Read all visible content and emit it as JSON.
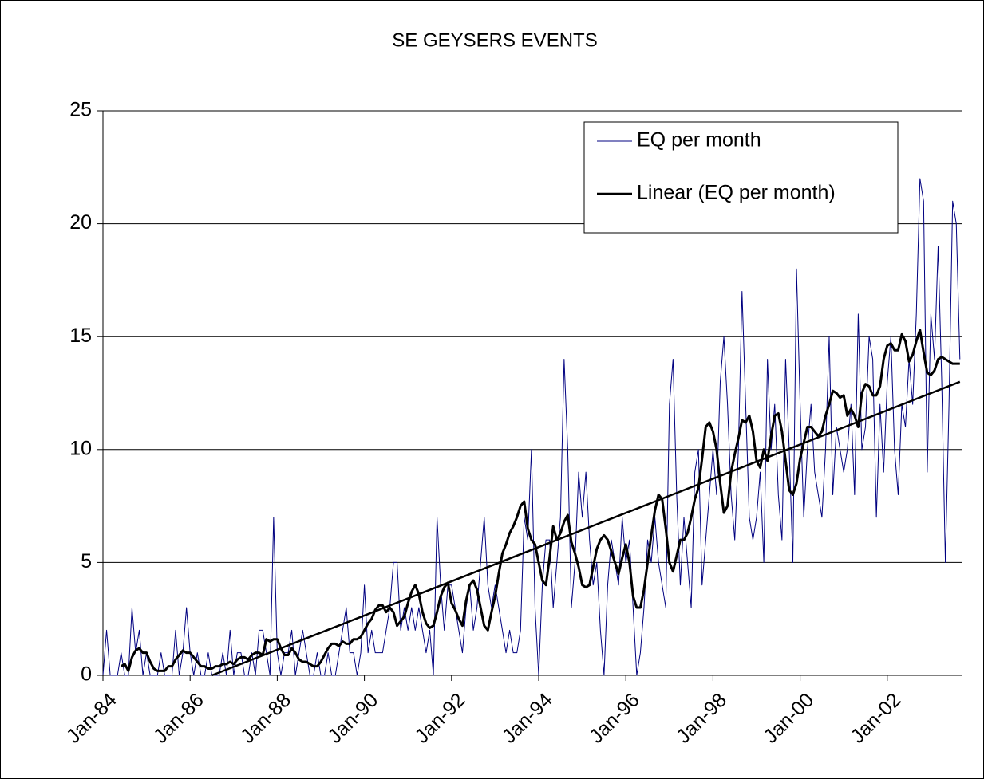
{
  "chart_data": {
    "type": "line",
    "title": "SE GEYSERS EVENTS",
    "x": [
      "Jan-84",
      "Feb-84",
      "Mar-84",
      "Apr-84",
      "May-84",
      "Jun-84",
      "Jul-84",
      "Aug-84",
      "Sep-84",
      "Oct-84",
      "Nov-84",
      "Dec-84",
      "Jan-85",
      "Feb-85",
      "Mar-85",
      "Apr-85",
      "May-85",
      "Jun-85",
      "Jul-85",
      "Aug-85",
      "Sep-85",
      "Oct-85",
      "Nov-85",
      "Dec-85",
      "Jan-86",
      "Feb-86",
      "Mar-86",
      "Apr-86",
      "May-86",
      "Jun-86",
      "Jul-86",
      "Aug-86",
      "Sep-86",
      "Oct-86",
      "Nov-86",
      "Dec-86",
      "Jan-87",
      "Feb-87",
      "Mar-87",
      "Apr-87",
      "May-87",
      "Jun-87",
      "Jul-87",
      "Aug-87",
      "Sep-87",
      "Oct-87",
      "Nov-87",
      "Dec-87",
      "Jan-88",
      "Feb-88",
      "Mar-88",
      "Apr-88",
      "May-88",
      "Jun-88",
      "Jul-88",
      "Aug-88",
      "Sep-88",
      "Oct-88",
      "Nov-88",
      "Dec-88",
      "Jan-89",
      "Feb-89",
      "Mar-89",
      "Apr-89",
      "May-89",
      "Jun-89",
      "Jul-89",
      "Aug-89",
      "Sep-89",
      "Oct-89",
      "Nov-89",
      "Dec-89",
      "Jan-90",
      "Feb-90",
      "Mar-90",
      "Apr-90",
      "May-90",
      "Jun-90",
      "Jul-90",
      "Aug-90",
      "Sep-90",
      "Oct-90",
      "Nov-90",
      "Dec-90",
      "Jan-91",
      "Feb-91",
      "Mar-91",
      "Apr-91",
      "May-91",
      "Jun-91",
      "Jul-91",
      "Aug-91",
      "Sep-91",
      "Oct-91",
      "Nov-91",
      "Dec-91",
      "Jan-92",
      "Feb-92",
      "Mar-92",
      "Apr-92",
      "May-92",
      "Jun-92",
      "Jul-92",
      "Aug-92",
      "Sep-92",
      "Oct-92",
      "Nov-92",
      "Dec-92",
      "Jan-93",
      "Feb-93",
      "Mar-93",
      "Apr-93",
      "May-93",
      "Jun-93",
      "Jul-93",
      "Aug-93",
      "Sep-93",
      "Oct-93",
      "Nov-93",
      "Dec-93",
      "Jan-94",
      "Feb-94",
      "Mar-94",
      "Apr-94",
      "May-94",
      "Jun-94",
      "Jul-94",
      "Aug-94",
      "Sep-94",
      "Oct-94",
      "Nov-94",
      "Dec-94",
      "Jan-95",
      "Feb-95",
      "Mar-95",
      "Apr-95",
      "May-95",
      "Jun-95",
      "Jul-95",
      "Aug-95",
      "Sep-95",
      "Oct-95",
      "Nov-95",
      "Dec-95",
      "Jan-96",
      "Feb-96",
      "Mar-96",
      "Apr-96",
      "May-96",
      "Jun-96",
      "Jul-96",
      "Aug-96",
      "Sep-96",
      "Oct-96",
      "Nov-96",
      "Dec-96",
      "Jan-97",
      "Feb-97",
      "Mar-97",
      "Apr-97",
      "May-97",
      "Jun-97",
      "Jul-97",
      "Aug-97",
      "Sep-97",
      "Oct-97",
      "Nov-97",
      "Dec-97",
      "Jan-98",
      "Feb-98",
      "Mar-98",
      "Apr-98",
      "May-98",
      "Jun-98",
      "Jul-98",
      "Aug-98",
      "Sep-98",
      "Oct-98",
      "Nov-98",
      "Dec-98",
      "Jan-99",
      "Feb-99",
      "Mar-99",
      "Apr-99",
      "May-99",
      "Jun-99",
      "Jul-99",
      "Aug-99",
      "Sep-99",
      "Oct-99",
      "Nov-99",
      "Dec-99",
      "Jan-00",
      "Feb-00",
      "Mar-00",
      "Apr-00",
      "May-00",
      "Jun-00",
      "Jul-00",
      "Aug-00",
      "Sep-00",
      "Oct-00",
      "Nov-00",
      "Dec-00",
      "Jan-01",
      "Feb-01",
      "Mar-01",
      "Apr-01",
      "May-01",
      "Jun-01",
      "Jul-01",
      "Aug-01",
      "Sep-01",
      "Oct-01",
      "Nov-01",
      "Dec-01",
      "Jan-02",
      "Feb-02",
      "Mar-02",
      "Apr-02",
      "May-02",
      "Jun-02",
      "Jul-02",
      "Aug-02",
      "Sep-02",
      "Oct-02",
      "Nov-02",
      "Dec-02",
      "Jan-03",
      "Feb-03",
      "Mar-03",
      "Apr-03",
      "May-03",
      "Jun-03",
      "Jul-03",
      "Aug-03",
      "Sep-03"
    ],
    "series": [
      {
        "name": "EQ per month",
        "color": "#000080",
        "width": 1,
        "values": [
          0,
          2,
          0,
          0,
          0,
          1,
          0,
          0,
          3,
          1,
          2,
          0,
          1,
          0,
          0,
          0,
          1,
          0,
          0,
          0,
          2,
          0,
          1,
          3,
          1,
          0,
          1,
          0,
          0,
          1,
          0,
          0,
          0,
          1,
          0,
          2,
          0,
          1,
          1,
          0,
          0,
          1,
          0,
          2,
          2,
          1,
          0,
          7,
          1,
          0,
          1,
          1,
          2,
          0,
          1,
          2,
          1,
          0,
          0,
          1,
          0,
          0,
          1,
          0,
          0,
          1,
          2,
          3,
          1,
          1,
          0,
          1,
          4,
          1,
          2,
          1,
          1,
          1,
          2,
          3,
          5,
          5,
          2,
          3,
          2,
          3,
          2,
          3,
          2,
          1,
          2,
          0,
          7,
          4,
          2,
          4,
          4,
          3,
          2,
          1,
          3,
          4,
          2,
          3,
          5,
          7,
          4,
          3,
          4,
          3,
          2,
          1,
          2,
          1,
          1,
          2,
          7,
          6,
          10,
          3,
          0,
          4,
          6,
          6,
          3,
          5,
          7,
          14,
          10,
          3,
          5,
          9,
          7,
          9,
          6,
          4,
          5,
          2,
          0,
          4,
          6,
          5,
          4,
          7,
          5,
          6,
          3,
          0,
          1,
          3,
          6,
          5,
          7,
          5,
          4,
          3,
          12,
          14,
          8,
          4,
          7,
          5,
          3,
          9,
          10,
          4,
          6,
          8,
          10,
          8,
          13,
          15,
          12,
          8,
          6,
          10,
          17,
          12,
          7,
          6,
          7,
          9,
          5,
          14,
          10,
          12,
          8,
          6,
          14,
          10,
          5,
          18,
          12,
          7,
          10,
          12,
          9,
          8,
          7,
          10,
          15,
          8,
          11,
          10,
          9,
          10,
          12,
          8,
          16,
          10,
          11,
          15,
          14,
          7,
          12,
          9,
          13,
          15,
          10,
          8,
          12,
          11,
          14,
          12,
          16,
          22,
          21,
          9,
          16,
          14,
          19,
          13,
          5,
          12,
          21,
          20,
          14
        ]
      },
      {
        "color": "#000000",
        "width": 3,
        "values": [
          null,
          null,
          null,
          null,
          null,
          0.4,
          0.5,
          0.2,
          0.8,
          1.1,
          1.2,
          1.0,
          1,
          0.6,
          0.3,
          0.2,
          0.2,
          0.2,
          0.4,
          0.4,
          0.7,
          0.9,
          1.1,
          1.0,
          1.0,
          0.8,
          0.6,
          0.4,
          0.4,
          0.3,
          0.3,
          0.4,
          0.4,
          0.5,
          0.5,
          0.6,
          0.5,
          0.7,
          0.8,
          0.8,
          0.7,
          0.9,
          1.0,
          1.0,
          0.9,
          1.6,
          1.5,
          1.6,
          1.6,
          1.2,
          0.9,
          0.9,
          1.2,
          1.0,
          0.7,
          0.6,
          0.6,
          0.5,
          0.4,
          0.4,
          0.6,
          0.9,
          1.2,
          1.4,
          1.4,
          1.3,
          1.5,
          1.4,
          1.4,
          1.6,
          1.6,
          1.7,
          2.0,
          2.3,
          2.5,
          2.9,
          3.1,
          3.1,
          2.8,
          3.0,
          2.8,
          2.2,
          2.4,
          2.6,
          3.2,
          3.7,
          4.0,
          3.6,
          2.8,
          2.3,
          2.1,
          2.2,
          2.8,
          3.5,
          3.9,
          4.1,
          3.2,
          2.9,
          2.5,
          2.2,
          3.3,
          4.0,
          4.2,
          3.8,
          3.0,
          2.2,
          2.0,
          2.8,
          3.5,
          4.5,
          5.4,
          5.8,
          6.3,
          6.6,
          7.0,
          7.5,
          7.7,
          6.5,
          6.0,
          5.8,
          5.0,
          4.2,
          4.0,
          5.2,
          6.6,
          6.0,
          6.3,
          6.8,
          7.1,
          5.9,
          5.4,
          4.8,
          4.0,
          3.9,
          4.0,
          4.8,
          5.6,
          6.0,
          6.2,
          6.0,
          5.5,
          5.0,
          4.5,
          5.2,
          5.8,
          5.0,
          3.5,
          3.0,
          3.0,
          3.8,
          5.0,
          6.2,
          7.3,
          8.0,
          7.8,
          6.5,
          5.0,
          4.6,
          5.3,
          6.0,
          6.0,
          6.3,
          7.0,
          7.8,
          8.3,
          9.6,
          11.0,
          11.2,
          10.8,
          10.0,
          8.5,
          7.2,
          7.5,
          9.0,
          9.8,
          10.5,
          11.3,
          11.2,
          11.5,
          10.8,
          9.5,
          9.2,
          10.0,
          9.5,
          10.6,
          11.5,
          11.6,
          10.8,
          9.5,
          8.2,
          8.0,
          8.5,
          9.6,
          10.3,
          11.0,
          11.0,
          10.8,
          10.6,
          10.8,
          11.5,
          12.0,
          12.6,
          12.5,
          12.3,
          12.4,
          11.5,
          11.8,
          11.5,
          11.0,
          12.5,
          12.9,
          12.8,
          12.4,
          12.4,
          12.8,
          14.0,
          14.6,
          14.7,
          14.4,
          14.4,
          15.1,
          14.8,
          13.9,
          14.2,
          14.8,
          15.3,
          14.3,
          13.4,
          13.3,
          13.5,
          14.0,
          14.1,
          14.0,
          13.9,
          13.8,
          13.8,
          13.8
        ]
      },
      {
        "name": "Linear (EQ per month)",
        "color": "#000000",
        "width": 2.5,
        "x": [
          "Jul-86",
          "Sep-03"
        ],
        "values": [
          0,
          13
        ]
      }
    ],
    "xticks": [
      "Jan-84",
      "Jan-86",
      "Jan-88",
      "Jan-90",
      "Jan-92",
      "Jan-94",
      "Jan-96",
      "Jan-98",
      "Jan-00",
      "Jan-02"
    ],
    "ylim": [
      0,
      25
    ],
    "yticks": [
      0,
      5,
      10,
      15,
      20,
      25
    ],
    "grid": true,
    "legend": "upper right"
  }
}
